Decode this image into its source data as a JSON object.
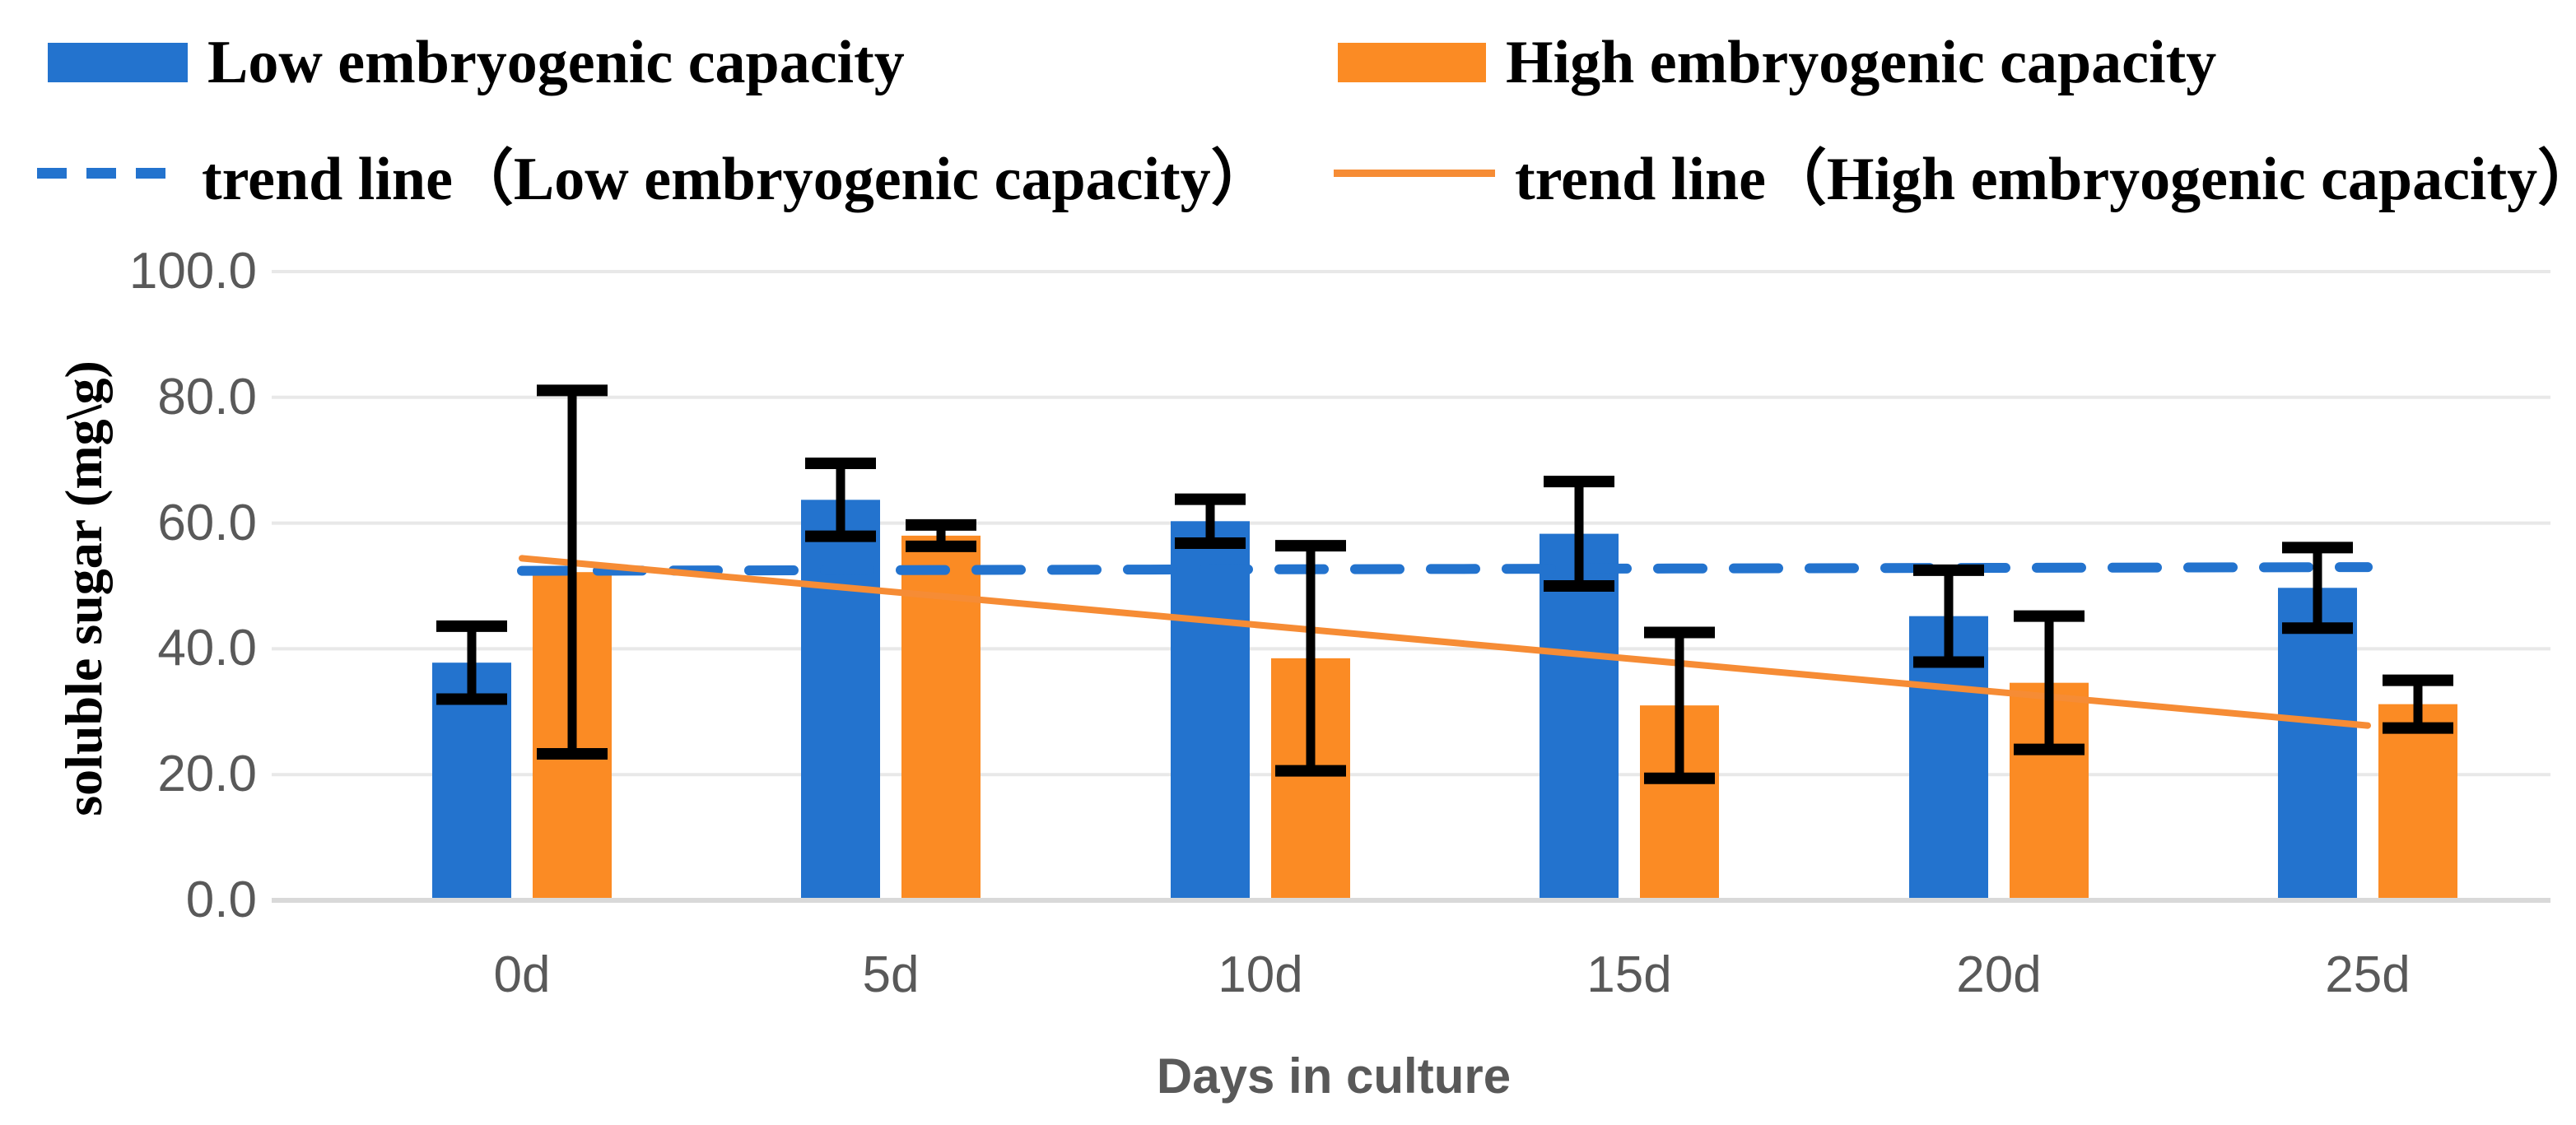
{
  "legend": {
    "items": [
      {
        "label": "Low embryogenic capacity",
        "marker": "swatch",
        "color": "#2373CE"
      },
      {
        "label": "High embryogenic capacity",
        "marker": "swatch",
        "color": "#FB8B24"
      },
      {
        "label": "trend line（Low embryogenic capacity）",
        "marker": "dashed-line",
        "color": "#2373CE"
      },
      {
        "label": "trend line（High embryogenic capacity）",
        "marker": "solid-line",
        "color": "#F68C35"
      }
    ]
  },
  "chart_data": {
    "type": "bar",
    "title": "",
    "xlabel": "Days in culture",
    "ylabel": "soluble sugar (mg\\g)",
    "categories": [
      "0d",
      "5d",
      "10d",
      "15d",
      "20d",
      "25d"
    ],
    "ylim": [
      0,
      100
    ],
    "grid": true,
    "legend_position": "top",
    "y_ticks": [
      {
        "label": "100.0",
        "value": 100
      },
      {
        "label": "80.0",
        "value": 80
      },
      {
        "label": "60.0",
        "value": 60
      },
      {
        "label": "40.0",
        "value": 40
      },
      {
        "label": "20.0",
        "value": 20
      },
      {
        "label": "0.0",
        "value": 0
      }
    ],
    "series": [
      {
        "name": "Low embryogenic capacity",
        "color": "#2373CE",
        "values": [
          37.8,
          63.7,
          60.3,
          58.3,
          45.2,
          49.7
        ],
        "errors": [
          5.8,
          5.8,
          3.5,
          8.3,
          7.3,
          6.4
        ]
      },
      {
        "name": "High embryogenic capacity",
        "color": "#FB8B24",
        "values": [
          52.2,
          58.0,
          38.5,
          31.0,
          34.6,
          31.2
        ],
        "errors": [
          28.9,
          1.7,
          17.9,
          11.6,
          10.6,
          3.8
        ]
      }
    ],
    "trend_lines": [
      {
        "name": "trend line（Low embryogenic capacity）",
        "color": "#2373CE",
        "dashed": true,
        "start_value": 52.4,
        "end_value": 53.0
      },
      {
        "name": "trend line（High embryogenic capacity）",
        "color": "#F68C35",
        "dashed": false,
        "start_value": 54.4,
        "end_value": 27.8
      }
    ],
    "error_bar_color": "#000000",
    "grid_color": "#E8E8E8",
    "axis_line_color": "#D9D9D9",
    "tick_color": "#595959"
  }
}
